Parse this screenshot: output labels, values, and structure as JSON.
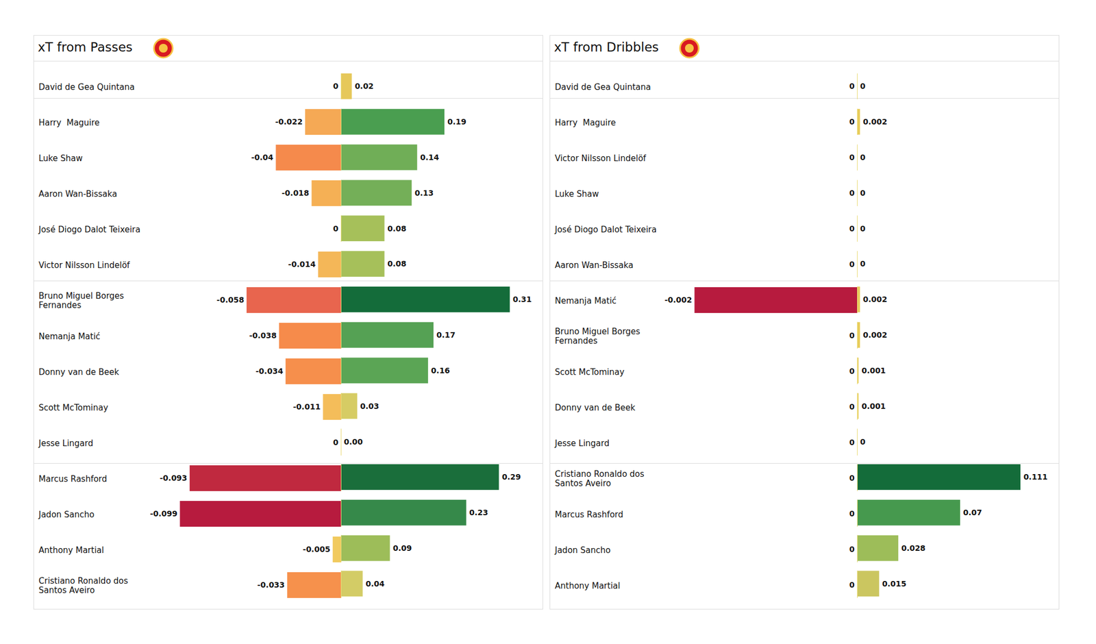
{
  "chart_data": [
    {
      "type": "bar",
      "title": "xT from Passes",
      "orientation": "horizontal",
      "data_labels": true,
      "tick_labels": false,
      "categories": [
        "David de Gea Quintana",
        "Harry  Maguire",
        "Luke Shaw",
        "Aaron Wan-Bissaka",
        "José Diogo Dalot Teixeira",
        "Victor Nilsson Lindelöf",
        "Bruno Miguel Borges\nFernandes",
        "Nemanja Matić",
        "Donny van de Beek",
        "Scott McTominay",
        "Jesse Lingard",
        "Marcus Rashford",
        "Jadon Sancho",
        "Anthony Martial",
        "Cristiano Ronaldo dos\nSantos Aveiro"
      ],
      "group_sizes": [
        1,
        5,
        5,
        4
      ],
      "series": [
        {
          "xlim": [
            -0.12,
            0
          ],
          "values": [
            0,
            -0.022,
            -0.04,
            -0.018,
            0,
            -0.014,
            -0.058,
            -0.038,
            -0.034,
            -0.011,
            0,
            -0.093,
            -0.099,
            -0.005,
            -0.033
          ],
          "colors": [
            "#f0d87a",
            "#f5a955",
            "#f58a4c",
            "#f5b055",
            "#f0d87a",
            "#f4b758",
            "#e8654e",
            "#f68b4b",
            "#f68f4c",
            "#f4bd5a",
            "#f0d87a",
            "#c0293f",
            "#b71b3e",
            "#f1ca5e",
            "#f6914c"
          ]
        },
        {
          "xlim": [
            0,
            0.37
          ],
          "values": [
            0.02,
            0.19,
            0.14,
            0.13,
            0.08,
            0.08,
            0.31,
            0.17,
            0.16,
            0.03,
            0,
            0.29,
            0.23,
            0.09,
            0.04
          ],
          "value_labels": [
            "0.02",
            "0.19",
            "0.14",
            "0.13",
            "0.08",
            "0.08",
            "0.31",
            "0.17",
            "0.16",
            "0.03",
            "0.00",
            "0.29",
            "0.23",
            "0.09",
            "0.04"
          ],
          "colors": [
            "#e6c85a",
            "#4a9e50",
            "#70ae57",
            "#74af58",
            "#a6c05a",
            "#a6c05a",
            "#146c3a",
            "#55a154",
            "#5ba555",
            "#d6cc64",
            "#eadb7a",
            "#1a6e3b",
            "#36894a",
            "#9dbd59",
            "#d3cc66"
          ]
        }
      ]
    },
    {
      "type": "bar",
      "title": "xT from Dribbles",
      "orientation": "horizontal",
      "data_labels": true,
      "tick_labels": false,
      "categories": [
        "David de Gea Quintana",
        "Harry  Maguire",
        "Victor Nilsson Lindelöf",
        "Luke Shaw",
        "José Diogo Dalot Teixeira",
        "Aaron Wan-Bissaka",
        "Nemanja Matić",
        "Bruno Miguel Borges\nFernandes",
        "Scott McTominay",
        "Donny van de Beek",
        "Jesse Lingard",
        "Cristiano Ronaldo dos\nSantos Aveiro",
        "Marcus Rashford",
        "Jadon Sancho",
        "Anthony Martial"
      ],
      "group_sizes": [
        1,
        5,
        5,
        4
      ],
      "series": [
        {
          "xlim": [
            -0.0024,
            0
          ],
          "values": [
            0,
            0,
            0,
            0,
            0,
            0,
            -0.002,
            0,
            0,
            0,
            0,
            0,
            0,
            0,
            0
          ],
          "colors": [
            "#f0d87a",
            "#f0d87a",
            "#f0d87a",
            "#f0d87a",
            "#f0d87a",
            "#f0d87a",
            "#b71b3e",
            "#f0d87a",
            "#f0d87a",
            "#f0d87a",
            "#f0d87a",
            "#f0d87a",
            "#f0d87a",
            "#f0d87a",
            "#f0d87a"
          ]
        },
        {
          "xlim": [
            0,
            0.137
          ],
          "values": [
            0,
            0.002,
            0,
            0,
            0,
            0,
            0.002,
            0.002,
            0.001,
            0.001,
            0,
            0.111,
            0.07,
            0.028,
            0.015
          ],
          "colors": [
            "#eadb7a",
            "#e8cc5a",
            "#eadb7a",
            "#eadb7a",
            "#eadb7a",
            "#eadb7a",
            "#e8cc5a",
            "#e8cc5a",
            "#e8cf60",
            "#e8cf60",
            "#eadb7a",
            "#146c3a",
            "#46994e",
            "#9dbd59",
            "#cbc660"
          ]
        }
      ]
    }
  ]
}
